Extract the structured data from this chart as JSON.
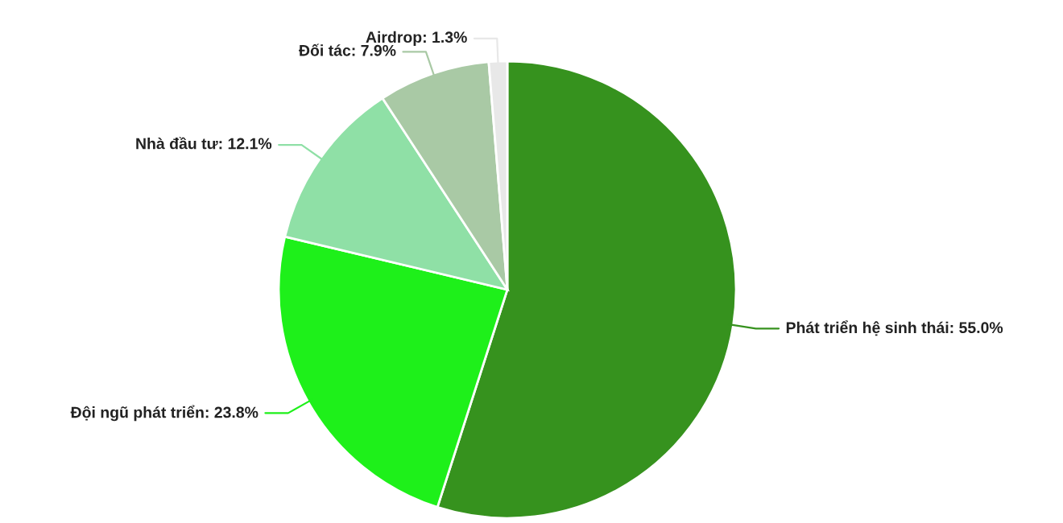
{
  "chart_data": {
    "type": "pie",
    "categories": [
      "Phát triển hệ sinh thái",
      "Đội ngũ phát triển",
      "Nhà đầu tư",
      "Đối tác",
      "Airdrop"
    ],
    "values": [
      55.0,
      23.8,
      12.1,
      7.9,
      1.3
    ],
    "colors": [
      "#36921e",
      "#1ef01a",
      "#8fe0a6",
      "#a9c9a5",
      "#e8e8e8"
    ],
    "value_labels": [
      "55.0%",
      "23.8%",
      "12.1%",
      "7.9%",
      "1.3%"
    ],
    "legend": false
  }
}
